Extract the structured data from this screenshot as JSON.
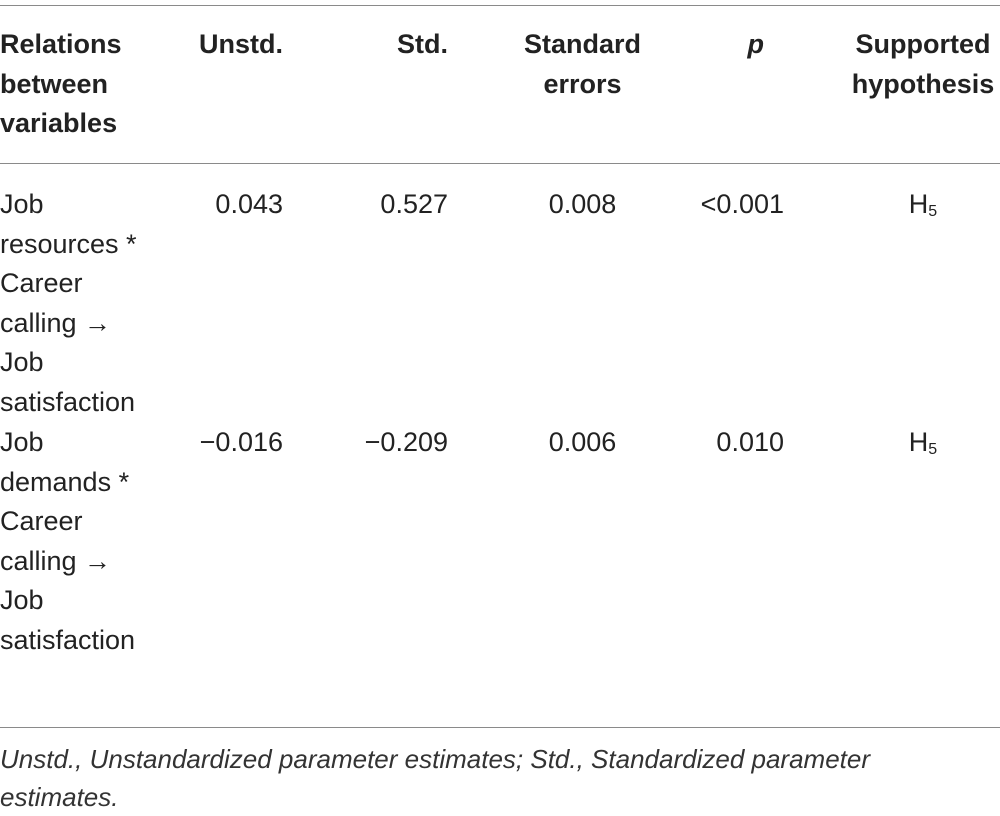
{
  "table": {
    "headers": {
      "relations": [
        "Relations",
        "between",
        "variables"
      ],
      "unstd": "Unstd.",
      "std": "Std.",
      "se": [
        "Standard",
        "errors"
      ],
      "p": "p",
      "hypothesis": [
        "Supported",
        "hypothesis"
      ]
    },
    "rows": [
      {
        "relation": [
          "Job",
          "resources *",
          "Career",
          "calling →",
          "Job",
          "satisfaction"
        ],
        "unstd": "0.043",
        "std": "0.527",
        "se": "0.008",
        "p": "<0.001",
        "hypothesis": "H",
        "hypothesis_sub": "5"
      },
      {
        "relation": [
          "Job",
          "demands *",
          "Career",
          "calling →",
          "Job",
          "satisfaction"
        ],
        "unstd": "−0.016",
        "std": "−0.209",
        "se": "0.006",
        "p": "0.010",
        "hypothesis": "H",
        "hypothesis_sub": "5"
      }
    ],
    "footnote": [
      "Unstd., Unstandardized parameter estimates; Std., Standardized parameter",
      "estimates."
    ]
  }
}
